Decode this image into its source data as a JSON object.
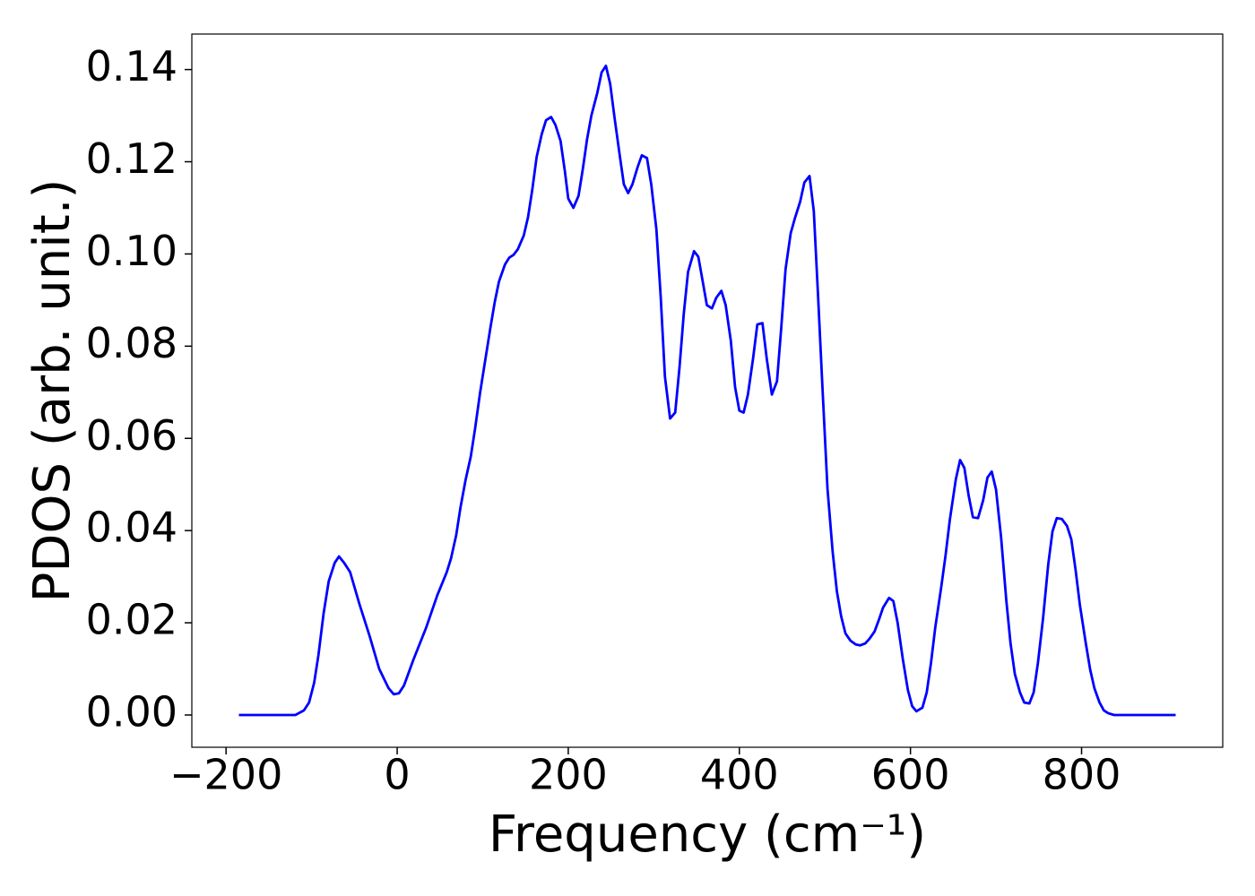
{
  "chart_data": {
    "type": "line",
    "xlabel": "Frequency (cm⁻¹)",
    "ylabel": "PDOS (arb. unit.)",
    "xlim": [
      -240,
      965
    ],
    "ylim": [
      -0.007,
      0.1477
    ],
    "xticks": [
      {
        "value": -200,
        "label": "−200"
      },
      0,
      200,
      400,
      600,
      800
    ],
    "yticks": [
      {
        "value": 0,
        "label": "0.00"
      },
      0.02,
      0.04,
      0.06,
      0.08,
      {
        "value": 0.1,
        "label": "0.10"
      },
      0.12,
      0.14
    ],
    "series": [
      {
        "color": "#0000ff",
        "x": [
          -185,
          -119,
          -109,
          -103,
          -97,
          -92,
          -86,
          -80,
          -73,
          -68,
          -62,
          -55,
          -44,
          -32,
          -21,
          -10,
          -4,
          2,
          8,
          19,
          34,
          47,
          58,
          63,
          69,
          74,
          80,
          86,
          91,
          97,
          103,
          109,
          114,
          119,
          126,
          131,
          136,
          141,
          148,
          153,
          158,
          163,
          169,
          174,
          180,
          185,
          191,
          196,
          200,
          206,
          212,
          217,
          222,
          227,
          234,
          239,
          244,
          249,
          254,
          260,
          265,
          270,
          275,
          281,
          286,
          292,
          297,
          303,
          308,
          313,
          319,
          325,
          330,
          335,
          340,
          347,
          352,
          357,
          362,
          368,
          373,
          379,
          384,
          390,
          395,
          400,
          405,
          410,
          416,
          421,
          427,
          432,
          438,
          444,
          449,
          454,
          460,
          465,
          471,
          476,
          482,
          487,
          492,
          497,
          503,
          509,
          514,
          519,
          524,
          530,
          536,
          541,
          547,
          552,
          558,
          563,
          568,
          575,
          580,
          585,
          591,
          597,
          602,
          607,
          614,
          619,
          624,
          629,
          636,
          641,
          646,
          653,
          658,
          663,
          668,
          673,
          679,
          685,
          690,
          695,
          700,
          706,
          712,
          717,
          722,
          728,
          733,
          739,
          744,
          749,
          755,
          761,
          766,
          771,
          777,
          783,
          788,
          793,
          798,
          805,
          810,
          815,
          821,
          826,
          831,
          838,
          910
        ],
        "y": [
          0,
          0,
          0.001,
          0.0027,
          0.007,
          0.013,
          0.022,
          0.029,
          0.033,
          0.0344,
          0.033,
          0.031,
          0.024,
          0.017,
          0.01,
          0.0058,
          0.0045,
          0.0047,
          0.0064,
          0.012,
          0.019,
          0.026,
          0.031,
          0.034,
          0.039,
          0.045,
          0.051,
          0.056,
          0.062,
          0.07,
          0.077,
          0.084,
          0.0895,
          0.094,
          0.0977,
          0.0992,
          0.0998,
          0.101,
          0.104,
          0.108,
          0.114,
          0.121,
          0.126,
          0.129,
          0.1297,
          0.128,
          0.1245,
          0.118,
          0.112,
          0.11,
          0.1126,
          0.1184,
          0.1249,
          0.13,
          0.135,
          0.1394,
          0.1408,
          0.1369,
          0.1297,
          0.1216,
          0.1151,
          0.1132,
          0.1151,
          0.1188,
          0.1214,
          0.1208,
          0.1151,
          0.1054,
          0.0909,
          0.0734,
          0.0643,
          0.0656,
          0.0753,
          0.087,
          0.0961,
          0.1006,
          0.0994,
          0.0942,
          0.0889,
          0.0882,
          0.0905,
          0.092,
          0.0889,
          0.0812,
          0.0711,
          0.066,
          0.0656,
          0.0695,
          0.0773,
          0.0847,
          0.085,
          0.0773,
          0.0695,
          0.0724,
          0.0841,
          0.0967,
          0.1045,
          0.1078,
          0.1113,
          0.1155,
          0.1169,
          0.1093,
          0.0909,
          0.0715,
          0.0491,
          0.0355,
          0.0268,
          0.0214,
          0.0177,
          0.0161,
          0.0153,
          0.0151,
          0.0155,
          0.0165,
          0.0181,
          0.0206,
          0.0233,
          0.0254,
          0.0247,
          0.02,
          0.0122,
          0.0054,
          0.0019,
          0.0008,
          0.0016,
          0.0049,
          0.0113,
          0.019,
          0.0278,
          0.0346,
          0.0423,
          0.0511,
          0.0553,
          0.0536,
          0.0476,
          0.0429,
          0.0427,
          0.0466,
          0.0515,
          0.0528,
          0.0489,
          0.0384,
          0.0249,
          0.0155,
          0.0089,
          0.0049,
          0.0027,
          0.0025,
          0.0049,
          0.0113,
          0.021,
          0.0326,
          0.0398,
          0.0427,
          0.0425,
          0.041,
          0.0381,
          0.0315,
          0.0239,
          0.0155,
          0.0099,
          0.0058,
          0.0027,
          0.001,
          0.0004,
          0,
          0
        ]
      }
    ]
  }
}
